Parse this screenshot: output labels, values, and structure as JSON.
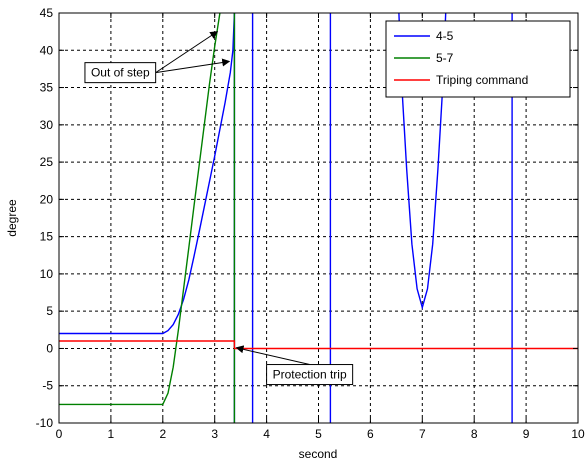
{
  "chart_data": {
    "type": "line",
    "xlabel": "second",
    "ylabel": "degree",
    "xlim": [
      0,
      10
    ],
    "ylim": [
      -10,
      45
    ],
    "xticks": [
      0,
      1,
      2,
      3,
      4,
      5,
      6,
      7,
      8,
      9,
      10
    ],
    "yticks": [
      -10,
      -5,
      0,
      5,
      10,
      15,
      20,
      25,
      30,
      35,
      40,
      45
    ],
    "grid": true,
    "legend_position": "top-right",
    "series": [
      {
        "name": "4-5",
        "color": "#0000ff",
        "segments": [
          [
            [
              0,
              2
            ],
            [
              2,
              2
            ],
            [
              2.1,
              2.4
            ],
            [
              2.2,
              3.2
            ],
            [
              2.3,
              4.6
            ],
            [
              2.4,
              6.6
            ],
            [
              2.5,
              9.2
            ],
            [
              2.6,
              12.3
            ],
            [
              2.7,
              15.6
            ],
            [
              2.8,
              19.0
            ],
            [
              2.9,
              22.4
            ],
            [
              3.0,
              25.8
            ],
            [
              3.1,
              29.4
            ],
            [
              3.2,
              33.0
            ],
            [
              3.3,
              37.0
            ],
            [
              3.35,
              40.0
            ],
            [
              3.38,
              45.0
            ]
          ],
          [
            [
              3.38,
              45
            ],
            [
              3.38,
              -10
            ]
          ],
          [
            [
              3.73,
              45
            ],
            [
              3.73,
              -10
            ]
          ],
          [
            [
              5.23,
              45
            ],
            [
              5.23,
              -10
            ]
          ],
          [
            [
              6.55,
              45
            ],
            [
              6.6,
              36
            ],
            [
              6.7,
              24
            ],
            [
              6.8,
              14
            ],
            [
              6.9,
              8
            ],
            [
              7.0,
              5.5
            ],
            [
              7.1,
              8
            ],
            [
              7.2,
              14
            ],
            [
              7.3,
              24
            ],
            [
              7.4,
              36
            ],
            [
              7.45,
              45
            ]
          ],
          [
            [
              8.73,
              45
            ],
            [
              8.73,
              -10
            ]
          ]
        ]
      },
      {
        "name": "5-7",
        "color": "#008000",
        "segments": [
          [
            [
              0,
              -7.5
            ],
            [
              2,
              -7.5
            ],
            [
              2.1,
              -6.0
            ],
            [
              2.2,
              -2.5
            ],
            [
              2.3,
              2.5
            ],
            [
              2.4,
              8.0
            ],
            [
              2.5,
              13.5
            ],
            [
              2.6,
              19.0
            ],
            [
              2.7,
              24.5
            ],
            [
              2.8,
              30.0
            ],
            [
              2.9,
              35.5
            ],
            [
              3.0,
              40.5
            ],
            [
              3.1,
              45.0
            ]
          ],
          [
            [
              3.38,
              45
            ],
            [
              3.38,
              -10
            ]
          ]
        ]
      },
      {
        "name": "Triping command",
        "color": "#ff0000",
        "segments": [
          [
            [
              0,
              1
            ],
            [
              3.38,
              1
            ],
            [
              3.38,
              0
            ],
            [
              10,
              0
            ]
          ]
        ]
      }
    ],
    "annotations": [
      {
        "text": "Out of step",
        "box_x": 0.5,
        "box_y": 37,
        "arrows_to": [
          [
            3.05,
            42.5
          ],
          [
            3.28,
            38.5
          ]
        ]
      },
      {
        "text": "Protection trip",
        "box_x": 4.0,
        "box_y": -3.5,
        "arrows_to": [
          [
            3.42,
            0.1
          ]
        ]
      }
    ]
  }
}
